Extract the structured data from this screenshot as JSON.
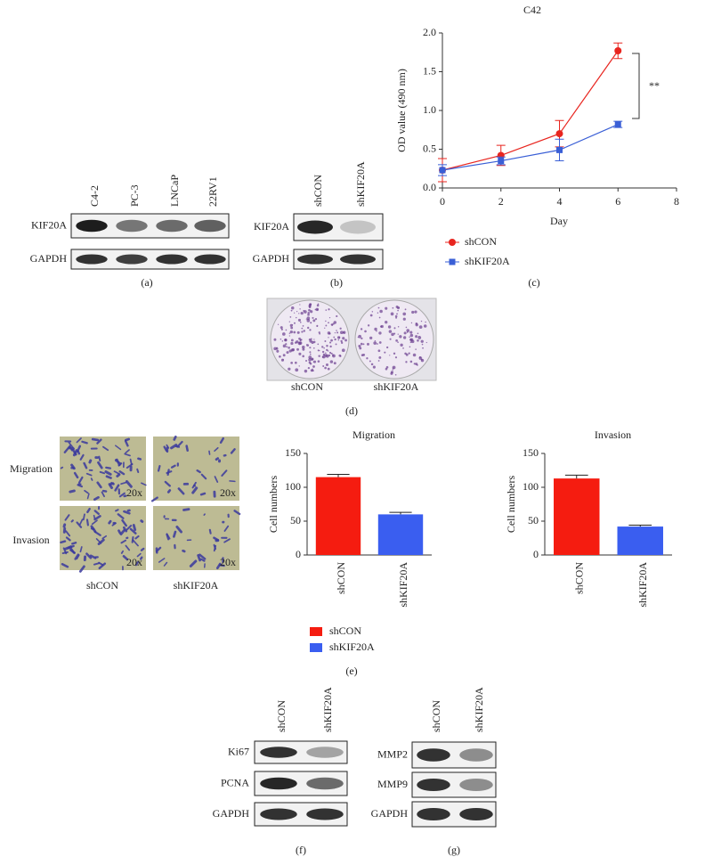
{
  "chart_data": [
    {
      "type": "line",
      "title": "C42",
      "x_label": "Day",
      "y_label": "OD value (490 nm)",
      "x": [
        0,
        2,
        4,
        6
      ],
      "xlim": [
        0,
        8
      ],
      "xticks": [
        0,
        2,
        4,
        6,
        8
      ],
      "ylim": [
        0,
        2
      ],
      "yticks": [
        {
          "value": 0,
          "label": "0.0"
        },
        0.5,
        {
          "value": 1,
          "label": "1.0"
        },
        1.5,
        {
          "value": 2,
          "label": "2.0"
        }
      ],
      "series": [
        {
          "name": "shCON",
          "color": "#e8251f",
          "values": [
            0.23,
            0.42,
            0.7,
            1.77
          ],
          "errors": [
            0.15,
            0.13,
            0.17,
            0.1
          ]
        },
        {
          "name": "shKIF20A",
          "color": "#3a5fd6",
          "values": [
            0.23,
            0.35,
            0.49,
            0.82
          ],
          "errors": [
            0.07,
            0.05,
            0.14,
            0.04
          ]
        }
      ],
      "annotation": "**",
      "panel_label": "(c)"
    },
    {
      "type": "bar",
      "title": "Migration",
      "y_label": "Cell numbers",
      "categories": [
        "shCON",
        "shKIF20A"
      ],
      "values": [
        115,
        60
      ],
      "errors": [
        4,
        3
      ],
      "colors": [
        "#f51c10",
        "#3a5ef0"
      ],
      "ylim": [
        0,
        150
      ],
      "yticks": [
        0,
        50,
        100,
        150
      ]
    },
    {
      "type": "bar",
      "title": "Invasion",
      "y_label": "Cell numbers",
      "categories": [
        "shCON",
        "shKIF20A"
      ],
      "values": [
        113,
        42
      ],
      "errors": [
        5,
        2
      ],
      "colors": [
        "#f51c10",
        "#3a5ef0"
      ],
      "ylim": [
        0,
        150
      ],
      "yticks": [
        0,
        50,
        100,
        150
      ]
    }
  ],
  "legend_e": {
    "items": [
      {
        "name": "shCON",
        "color": "#f51c10"
      },
      {
        "name": "shKIF20A",
        "color": "#3a5ef0"
      }
    ],
    "panel_label": "(e)"
  },
  "blot_a": {
    "lanes": [
      "C4-2",
      "PC-3",
      "LNCaP",
      "22RV1"
    ],
    "rows": [
      "KIF20A",
      "GAPDH"
    ],
    "panel_label": "(a)"
  },
  "blot_b": {
    "lanes": [
      "shCON",
      "shKIF20A"
    ],
    "rows": [
      "KIF20A",
      "GAPDH"
    ],
    "panel_label": "(b)"
  },
  "colony_d": {
    "labels": [
      "shCON",
      "shKIF20A"
    ],
    "panel_label": "(d)"
  },
  "micro_e": {
    "rows": [
      "Migration",
      "Invasion"
    ],
    "columns": [
      "shCON",
      "shKIF20A"
    ],
    "magnification": "20x"
  },
  "blot_f": {
    "lanes": [
      "shCON",
      "shKIF20A"
    ],
    "rows": [
      "Ki67",
      "PCNA",
      "GAPDH"
    ],
    "panel_label": "(f)"
  },
  "blot_g": {
    "lanes": [
      "shCON",
      "shKIF20A"
    ],
    "rows": [
      "MMP2",
      "MMP9",
      "GAPDH"
    ],
    "panel_label": "(g)"
  }
}
